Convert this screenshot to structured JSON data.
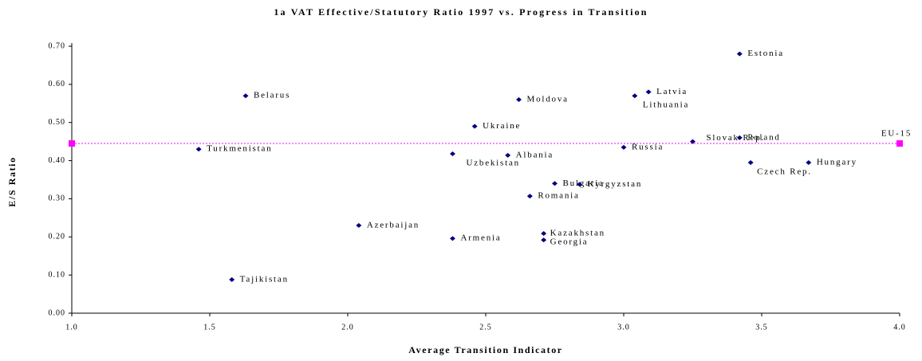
{
  "chart_data": {
    "type": "scatter",
    "title": "1a VAT Effective/Statutory Ratio 1997 vs. Progress in Transition",
    "x_label": "Average Transition Indicator",
    "y_label": "E/S Ratio",
    "color": "#000080",
    "point_labels": [
      "Estonia",
      "Latvia",
      "Lithuania",
      "Belarus",
      "Moldova",
      "Ukraine",
      "Poland",
      "Slovak Rep.",
      "Russia",
      "Turkmenistan",
      "Uzbekistan",
      "Albania",
      "Czech Rep.",
      "Hungary",
      "Bulgaria",
      "Kyrgyzstan",
      "Romania",
      "Azerbaijan",
      "Kazakhstan",
      "Armenia",
      "Georgia",
      "Tajikistan"
    ],
    "x": [
      3.42,
      3.09,
      3.04,
      1.63,
      2.62,
      2.46,
      3.42,
      3.25,
      3.0,
      1.46,
      2.38,
      2.58,
      3.46,
      3.67,
      2.75,
      2.84,
      2.66,
      2.04,
      2.71,
      2.38,
      2.71,
      1.58
    ],
    "values": [
      0.68,
      0.58,
      0.57,
      0.57,
      0.56,
      0.49,
      0.46,
      0.45,
      0.435,
      0.43,
      0.418,
      0.414,
      0.395,
      0.395,
      0.34,
      0.338,
      0.307,
      0.23,
      0.209,
      0.196,
      0.192,
      0.088
    ],
    "reference_line": {
      "label": "EU-15",
      "value": 0.445,
      "color": "#ff00ff"
    },
    "xlim": [
      1.0,
      4.0
    ],
    "xticks": [
      {
        "value": 1.0,
        "label": "1.0"
      },
      {
        "value": 1.5,
        "label": "1.5"
      },
      {
        "value": 2.0,
        "label": "2.0"
      },
      {
        "value": 2.5,
        "label": "2.5"
      },
      {
        "value": 3.0,
        "label": "3.0"
      },
      {
        "value": 3.5,
        "label": "3.5"
      },
      {
        "value": 4.0,
        "label": "4.0"
      }
    ],
    "ylim": [
      0,
      0.7
    ],
    "yticks": [
      {
        "value": 0,
        "label": "0.00"
      },
      {
        "value": 0.1,
        "label": "0.10"
      },
      {
        "value": 0.2,
        "label": "0.20"
      },
      {
        "value": 0.3,
        "label": "0.30"
      },
      {
        "value": 0.4,
        "label": "0.40"
      },
      {
        "value": 0.5,
        "label": "0.50"
      },
      {
        "value": 0.6,
        "label": "0.60"
      },
      {
        "value": 0.7,
        "label": "0.70"
      }
    ]
  }
}
